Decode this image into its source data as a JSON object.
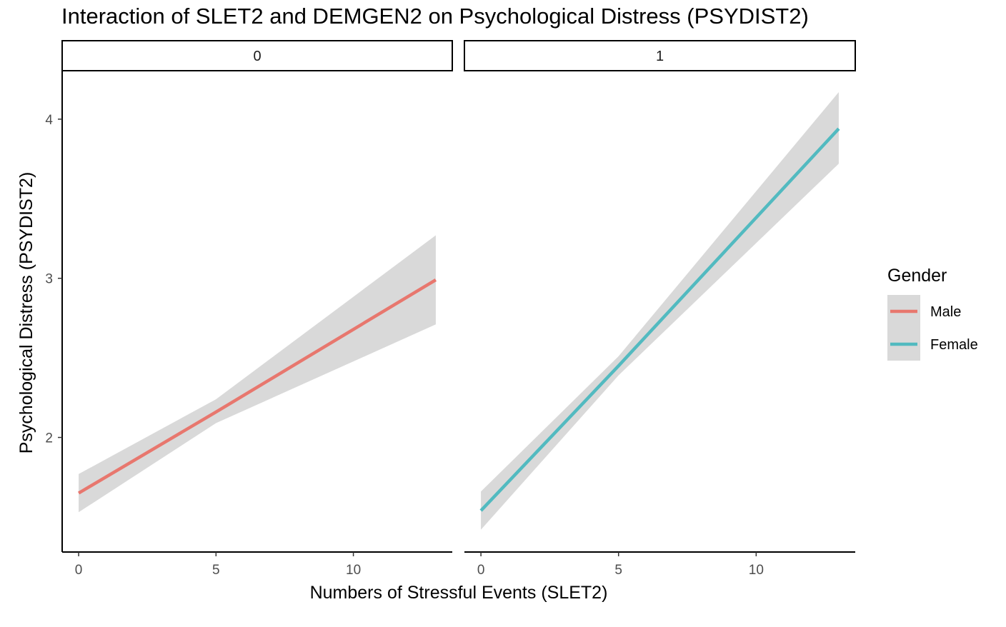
{
  "chart_data": {
    "type": "line",
    "title": "Interaction of SLET2 and DEMGEN2 on Psychological Distress (PSYDIST2)",
    "xlabel": "Numbers of Stressful Events (SLET2)",
    "ylabel": "Psychological Distress (PSYDIST2)",
    "xlim": [
      -0.6,
      13.6
    ],
    "ylim": [
      1.28,
      4.3
    ],
    "x_ticks": [
      0,
      5,
      10
    ],
    "y_ticks": [
      2,
      3,
      4
    ],
    "grid": false,
    "legend": {
      "title": "Gender",
      "position": "right",
      "entries": [
        {
          "name": "Male",
          "color": "#E8776E"
        },
        {
          "name": "Female",
          "color": "#52BAC0"
        }
      ]
    },
    "panels": [
      {
        "strip_label": "0",
        "series": [
          {
            "name": "Male",
            "color": "#E8776E",
            "x": [
              0,
              5,
              13
            ],
            "y": [
              1.65,
              2.16,
              2.99
            ],
            "ribbon_lower": [
              1.53,
              2.09,
              2.71
            ],
            "ribbon_upper": [
              1.77,
              2.24,
              3.27
            ]
          }
        ]
      },
      {
        "strip_label": "1",
        "series": [
          {
            "name": "Female",
            "color": "#52BAC0",
            "x": [
              0,
              5,
              13
            ],
            "y": [
              1.54,
              2.45,
              3.94
            ],
            "ribbon_lower": [
              1.42,
              2.39,
              3.72
            ],
            "ribbon_upper": [
              1.66,
              2.51,
              4.17
            ]
          }
        ]
      }
    ],
    "ribbon_color": "#D9D9D9"
  }
}
